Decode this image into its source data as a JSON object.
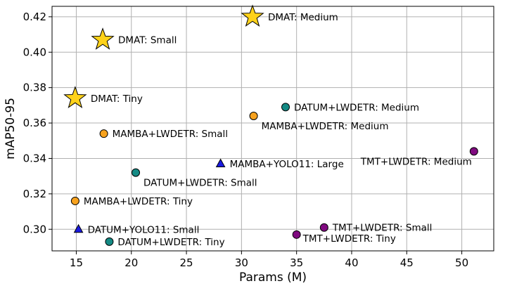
{
  "chart_data": {
    "type": "scatter",
    "title": "",
    "xlabel": "Params (M)",
    "ylabel": "mAP50-95",
    "xlim": [
      12.8,
      52.9
    ],
    "ylim": [
      0.2878,
      0.4259
    ],
    "xticks": [
      15,
      20,
      25,
      30,
      35,
      40,
      45,
      50
    ],
    "yticks": [
      0.3,
      0.32,
      0.34,
      0.36,
      0.38,
      0.4,
      0.42
    ],
    "xtick_labels": [
      "15",
      "20",
      "25",
      "30",
      "35",
      "40",
      "45",
      "50"
    ],
    "ytick_labels": [
      "0.30",
      "0.32",
      "0.34",
      "0.36",
      "0.38",
      "0.40",
      "0.42"
    ],
    "grid": true,
    "colors": {
      "DMAT": "#ffd21a",
      "MAMBA": "#f7a21e",
      "DATUM": "#148a84",
      "TMT": "#800a80",
      "YOLO": "#1a1ae0"
    },
    "points": [
      {
        "label": "DMAT: Tiny",
        "x": 14.9,
        "y": 0.374,
        "marker": "star",
        "group": "DMAT",
        "label_pos": "right"
      },
      {
        "label": "DMAT: Small",
        "x": 17.4,
        "y": 0.407,
        "marker": "star",
        "group": "DMAT",
        "label_pos": "right"
      },
      {
        "label": "DMAT: Medium",
        "x": 31.0,
        "y": 0.42,
        "marker": "star",
        "group": "DMAT",
        "label_pos": "right"
      },
      {
        "label": "MAMBA+LWDETR: Tiny",
        "x": 14.9,
        "y": 0.316,
        "marker": "circle",
        "group": "MAMBA",
        "label_pos": "right"
      },
      {
        "label": "MAMBA+LWDETR: Small",
        "x": 17.5,
        "y": 0.354,
        "marker": "circle",
        "group": "MAMBA",
        "label_pos": "right"
      },
      {
        "label": "MAMBA+LWDETR: Medium",
        "x": 31.1,
        "y": 0.364,
        "marker": "circle",
        "group": "MAMBA",
        "label_pos": "below-right"
      },
      {
        "label": "DATUM+LWDETR: Tiny",
        "x": 18.0,
        "y": 0.293,
        "marker": "circle",
        "group": "DATUM",
        "label_pos": "right"
      },
      {
        "label": "DATUM+LWDETR: Small",
        "x": 20.4,
        "y": 0.332,
        "marker": "circle",
        "group": "DATUM",
        "label_pos": "below-right"
      },
      {
        "label": "DATUM+LWDETR: Medium",
        "x": 34.0,
        "y": 0.369,
        "marker": "circle",
        "group": "DATUM",
        "label_pos": "right"
      },
      {
        "label": "TMT+LWDETR: Tiny",
        "x": 35.0,
        "y": 0.297,
        "marker": "circle",
        "group": "TMT",
        "label_pos": "right-low"
      },
      {
        "label": "TMT+LWDETR: Small",
        "x": 37.5,
        "y": 0.301,
        "marker": "circle",
        "group": "TMT",
        "label_pos": "right"
      },
      {
        "label": "TMT+LWDETR: Medium",
        "x": 51.1,
        "y": 0.344,
        "marker": "circle",
        "group": "TMT",
        "label_pos": "below-left"
      },
      {
        "label": "DATUM+YOLO11: Small",
        "x": 15.2,
        "y": 0.3,
        "marker": "triangle",
        "group": "YOLO",
        "label_pos": "right"
      },
      {
        "label": "MAMBA+YOLO11: Large",
        "x": 28.1,
        "y": 0.337,
        "marker": "triangle",
        "group": "YOLO",
        "label_pos": "right"
      }
    ]
  }
}
